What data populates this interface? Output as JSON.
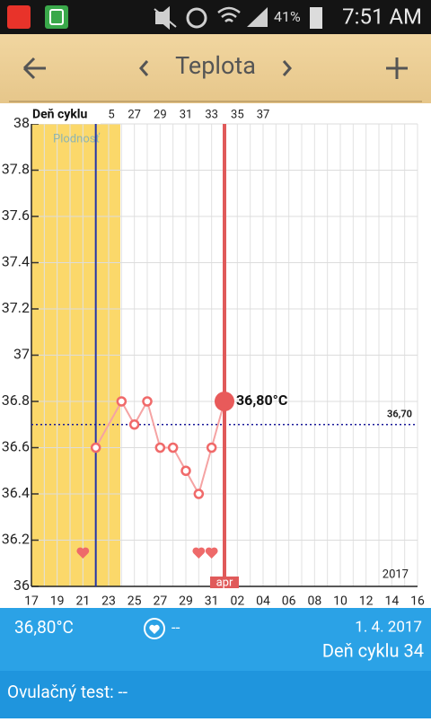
{
  "status_bar": {
    "battery": "41%",
    "time": "7:51 AM"
  },
  "app_bar": {
    "title": "Teplota"
  },
  "chart_data": {
    "type": "line",
    "cycle_axis_label": "Deň cyklu",
    "cycle_days": [
      "5",
      "27",
      "29",
      "31",
      "33",
      "35",
      "37"
    ],
    "fertile_label": "Plodnosť",
    "categories": [
      "17",
      null,
      "19",
      null,
      "21",
      null,
      "23",
      null,
      "25",
      null,
      "27",
      null,
      "29",
      null,
      "31",
      null,
      "02",
      null,
      "04",
      null,
      "06",
      null,
      "08",
      null,
      "10",
      null,
      "12",
      null,
      "14",
      null,
      "16"
    ],
    "series": [
      {
        "color": "#f06a6a",
        "values": [
          null,
          null,
          null,
          null,
          null,
          36.6,
          null,
          36.8,
          36.7,
          36.8,
          36.6,
          36.6,
          36.5,
          36.4,
          36.6,
          36.8,
          null,
          null,
          null,
          null,
          null,
          null,
          null,
          null,
          null,
          null,
          null,
          null,
          null,
          null,
          null
        ],
        "value_labels": [
          null,
          null,
          null,
          null,
          null,
          null,
          null,
          null,
          null,
          null,
          null,
          null,
          null,
          null,
          null,
          "36,80°C",
          null,
          null,
          null,
          null,
          null,
          null,
          null,
          null,
          null,
          null,
          null,
          null,
          null,
          null,
          null
        ]
      }
    ],
    "reference_line": {
      "value": 36.7,
      "label": "36,70",
      "color": "#1a1a9a"
    },
    "month_label": "apr",
    "year_label": "2017",
    "ylim": [
      36,
      38
    ],
    "yticks": [
      38,
      37.8,
      37.6,
      37.4,
      37.2,
      37,
      36.8,
      36.6,
      36.4,
      36.2,
      36
    ],
    "grid": true
  },
  "info": {
    "temperature": "36,80°C",
    "sex": "--",
    "date": "1. 4. 2017",
    "cycle_day": "Deň cyklu 34",
    "ovulation_test": "Ovulačný test: --"
  }
}
